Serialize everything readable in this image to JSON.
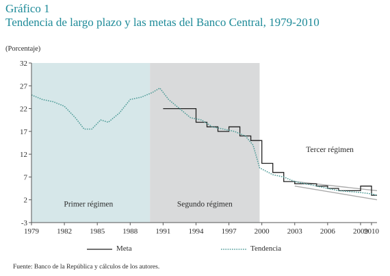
{
  "figure": {
    "number": "Gráfico 1",
    "title": "Tendencia de largo plazo y las metas del Banco Central, 1979-2010",
    "unit_label": "(Porcentaje)",
    "source": "Fuente: Banco de la República y cálculos de los autores."
  },
  "chart_data": {
    "type": "line",
    "title": "Tendencia de largo plazo y las metas del Banco Central, 1979-2010",
    "ylabel": "(Porcentaje)",
    "xlabel": "",
    "xlim": [
      1979,
      2010.5
    ],
    "ylim": [
      -3,
      32
    ],
    "x_ticks": [
      1979,
      1982,
      1985,
      1988,
      1991,
      1994,
      1997,
      2000,
      2003,
      2006,
      2009,
      2010
    ],
    "y_ticks": [
      -3,
      2,
      7,
      12,
      17,
      22,
      27,
      32
    ],
    "grid": false,
    "legend_position": "bottom",
    "colors": {
      "meta": "#1f1f1f",
      "tendencia": "#4f9c98",
      "band": "#aaaaaa",
      "region1": "#d6e7e9",
      "region2": "#d9dadb"
    },
    "regions": [
      {
        "label": "Primer régimen",
        "x_start": 1979,
        "x_end": 1989.8
      },
      {
        "label": "Segundo régimen",
        "x_start": 1989.8,
        "x_end": 1999.8
      },
      {
        "label": "Tercer régimen",
        "x_start": 1999.8,
        "x_end": 2010.5
      }
    ],
    "series": [
      {
        "name": "Meta",
        "style": "step",
        "x": [
          1991,
          1992,
          1993,
          1994,
          1995,
          1996,
          1997,
          1998,
          1999,
          2000,
          2001,
          2002,
          2003,
          2004,
          2005,
          2006,
          2007,
          2008,
          2009,
          2010,
          2010.5
        ],
        "values": [
          22,
          22,
          22,
          19,
          18,
          17,
          18,
          16,
          15,
          10,
          8,
          6,
          5.5,
          5.5,
          5,
          4.5,
          4,
          4,
          5,
          3,
          3
        ]
      },
      {
        "name": "Tendencia",
        "style": "dotted",
        "x": [
          1979,
          1980,
          1981,
          1982,
          1983,
          1983.8,
          1984.5,
          1985.3,
          1986,
          1987,
          1988,
          1989,
          1990,
          1990.7,
          1991.5,
          1992.5,
          1993.5,
          1994.5,
          1995.5,
          1996.5,
          1997.5,
          1998.5,
          1999.2,
          1999.8,
          2001,
          2002,
          2003,
          2004,
          2005,
          2006,
          2007,
          2008,
          2009,
          2010,
          2010.5
        ],
        "values": [
          25,
          24,
          23.5,
          22.5,
          20,
          17.5,
          17.5,
          19.5,
          19,
          21,
          24,
          24.5,
          25.5,
          26.5,
          24,
          22,
          20,
          19.5,
          18,
          17.5,
          17,
          16,
          14,
          9,
          7.5,
          7,
          6,
          5.5,
          5,
          4.5,
          4,
          3.8,
          3.6,
          3.3,
          3
        ]
      }
    ],
    "meta_band": {
      "x": [
        2003,
        2010.5
      ],
      "lower": [
        5,
        2
      ],
      "upper": [
        6,
        4
      ]
    }
  },
  "legend": {
    "meta_label": "Meta",
    "tendencia_label": "Tendencia"
  }
}
